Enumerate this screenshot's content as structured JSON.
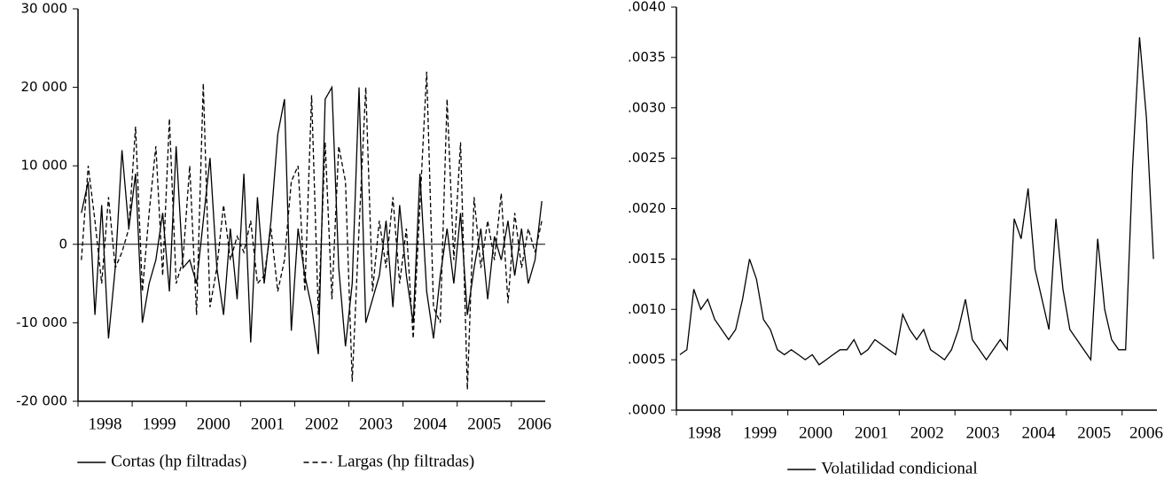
{
  "chart_data": [
    {
      "type": "line",
      "categories": [
        "1998",
        null,
        null,
        null,
        null,
        null,
        null,
        null,
        "1999",
        null,
        null,
        null,
        null,
        null,
        null,
        null,
        "2000",
        null,
        null,
        null,
        null,
        null,
        null,
        null,
        "2001",
        null,
        null,
        null,
        null,
        null,
        null,
        null,
        "2002",
        null,
        null,
        null,
        null,
        null,
        null,
        null,
        "2003",
        null,
        null,
        null,
        null,
        null,
        null,
        null,
        "2004",
        null,
        null,
        null,
        null,
        null,
        null,
        null,
        "2005",
        null,
        null,
        null,
        null,
        null,
        null,
        null,
        "2006",
        null,
        null,
        null,
        null
      ],
      "series": [
        {
          "name": "Cortas (hp filtradas)",
          "color": "#000000",
          "linestyle": "solid",
          "values": [
            4000,
            8000,
            -9000,
            5000,
            -12000,
            -3000,
            12000,
            2000,
            9000,
            -10000,
            -5000,
            -2000,
            4000,
            -6000,
            12500,
            -3000,
            -2000,
            -5000,
            3000,
            11000,
            -3000,
            -9000,
            2000,
            -7000,
            9000,
            -12500,
            6000,
            -5000,
            3000,
            14000,
            18500,
            -11000,
            2000,
            -4000,
            -8000,
            -14000,
            18500,
            20000,
            -3000,
            -13000,
            -5000,
            20000,
            -10000,
            -7000,
            -4000,
            3000,
            -8000,
            5000,
            -4000,
            -10000,
            9000,
            -6000,
            -12000,
            -4000,
            2000,
            -5000,
            4000,
            -9000,
            -3000,
            2000,
            -7000,
            1000,
            -2000,
            3000,
            -4000,
            2000,
            -5000,
            -2000,
            5500
          ]
        },
        {
          "name": "Largas (hp filtradas)",
          "color": "#000000",
          "linestyle": "dashed",
          "values": [
            -2000,
            10000,
            3000,
            -5000,
            6000,
            -3000,
            -1000,
            2000,
            15000,
            -6000,
            4000,
            12500,
            -4000,
            16000,
            -5000,
            -2000,
            10000,
            -9000,
            20500,
            -8000,
            -3000,
            5000,
            -2000,
            1000,
            -1000,
            3000,
            -5000,
            -4000,
            2000,
            -6000,
            -2000,
            8000,
            10000,
            -6000,
            19000,
            -9000,
            13000,
            -7000,
            12500,
            8000,
            -17500,
            2000,
            20000,
            -6000,
            3000,
            -3000,
            6000,
            -5000,
            2000,
            -12000,
            5000,
            22000,
            -8000,
            -10000,
            18500,
            -2000,
            13000,
            -18500,
            6000,
            -3000,
            3000,
            -2000,
            6500,
            -7500,
            4000,
            -3000,
            2000,
            -1000,
            3000
          ]
        }
      ],
      "ylim": [
        -20000,
        30000
      ],
      "yticks": [
        {
          "value": -20000,
          "label": "-20 000"
        },
        {
          "value": -10000,
          "label": "-10 000"
        },
        0,
        {
          "value": 10000,
          "label": "10 000"
        },
        {
          "value": 20000,
          "label": "20 000"
        },
        {
          "value": 30000,
          "label": "30 000"
        }
      ],
      "zero_line": true
    },
    {
      "type": "line",
      "categories": [
        "1998",
        null,
        null,
        null,
        null,
        null,
        null,
        null,
        "1999",
        null,
        null,
        null,
        null,
        null,
        null,
        null,
        "2000",
        null,
        null,
        null,
        null,
        null,
        null,
        null,
        "2001",
        null,
        null,
        null,
        null,
        null,
        null,
        null,
        "2002",
        null,
        null,
        null,
        null,
        null,
        null,
        null,
        "2003",
        null,
        null,
        null,
        null,
        null,
        null,
        null,
        "2004",
        null,
        null,
        null,
        null,
        null,
        null,
        null,
        "2005",
        null,
        null,
        null,
        null,
        null,
        null,
        null,
        "2006",
        null,
        null,
        null,
        null
      ],
      "series": [
        {
          "name": "Volatilidad condicional",
          "color": "#000000",
          "linestyle": "solid",
          "values": [
            0.00055,
            0.0006,
            0.0012,
            0.001,
            0.0011,
            0.0009,
            0.0008,
            0.0007,
            0.0008,
            0.0011,
            0.0015,
            0.0013,
            0.0009,
            0.0008,
            0.0006,
            0.00055,
            0.0006,
            0.00055,
            0.0005,
            0.00055,
            0.00045,
            0.0005,
            0.00055,
            0.0006,
            0.0006,
            0.0007,
            0.00055,
            0.0006,
            0.0007,
            0.00065,
            0.0006,
            0.00055,
            0.00095,
            0.0008,
            0.0007,
            0.0008,
            0.0006,
            0.00055,
            0.0005,
            0.0006,
            0.0008,
            0.0011,
            0.0007,
            0.0006,
            0.0005,
            0.0006,
            0.0007,
            0.0006,
            0.0019,
            0.0017,
            0.0022,
            0.0014,
            0.0011,
            0.0008,
            0.0019,
            0.0012,
            0.0008,
            0.0007,
            0.0006,
            0.0005,
            0.0017,
            0.001,
            0.0007,
            0.0006,
            0.0006,
            0.0024,
            0.0037,
            0.0029,
            0.0015
          ]
        }
      ],
      "ylim": [
        0,
        0.004
      ],
      "yticks": [
        {
          "value": 0,
          "label": ".0000"
        },
        {
          "value": 0.0005,
          "label": ".0005"
        },
        {
          "value": 0.001,
          "label": ".0010"
        },
        {
          "value": 0.0015,
          "label": ".0015"
        },
        {
          "value": 0.002,
          "label": ".0020"
        },
        {
          "value": 0.0025,
          "label": ".0025"
        },
        {
          "value": 0.003,
          "label": ".0030"
        },
        {
          "value": 0.0035,
          "label": ".0035"
        },
        {
          "value": 0.004,
          "label": ".0040"
        }
      ],
      "zero_line": false
    }
  ]
}
